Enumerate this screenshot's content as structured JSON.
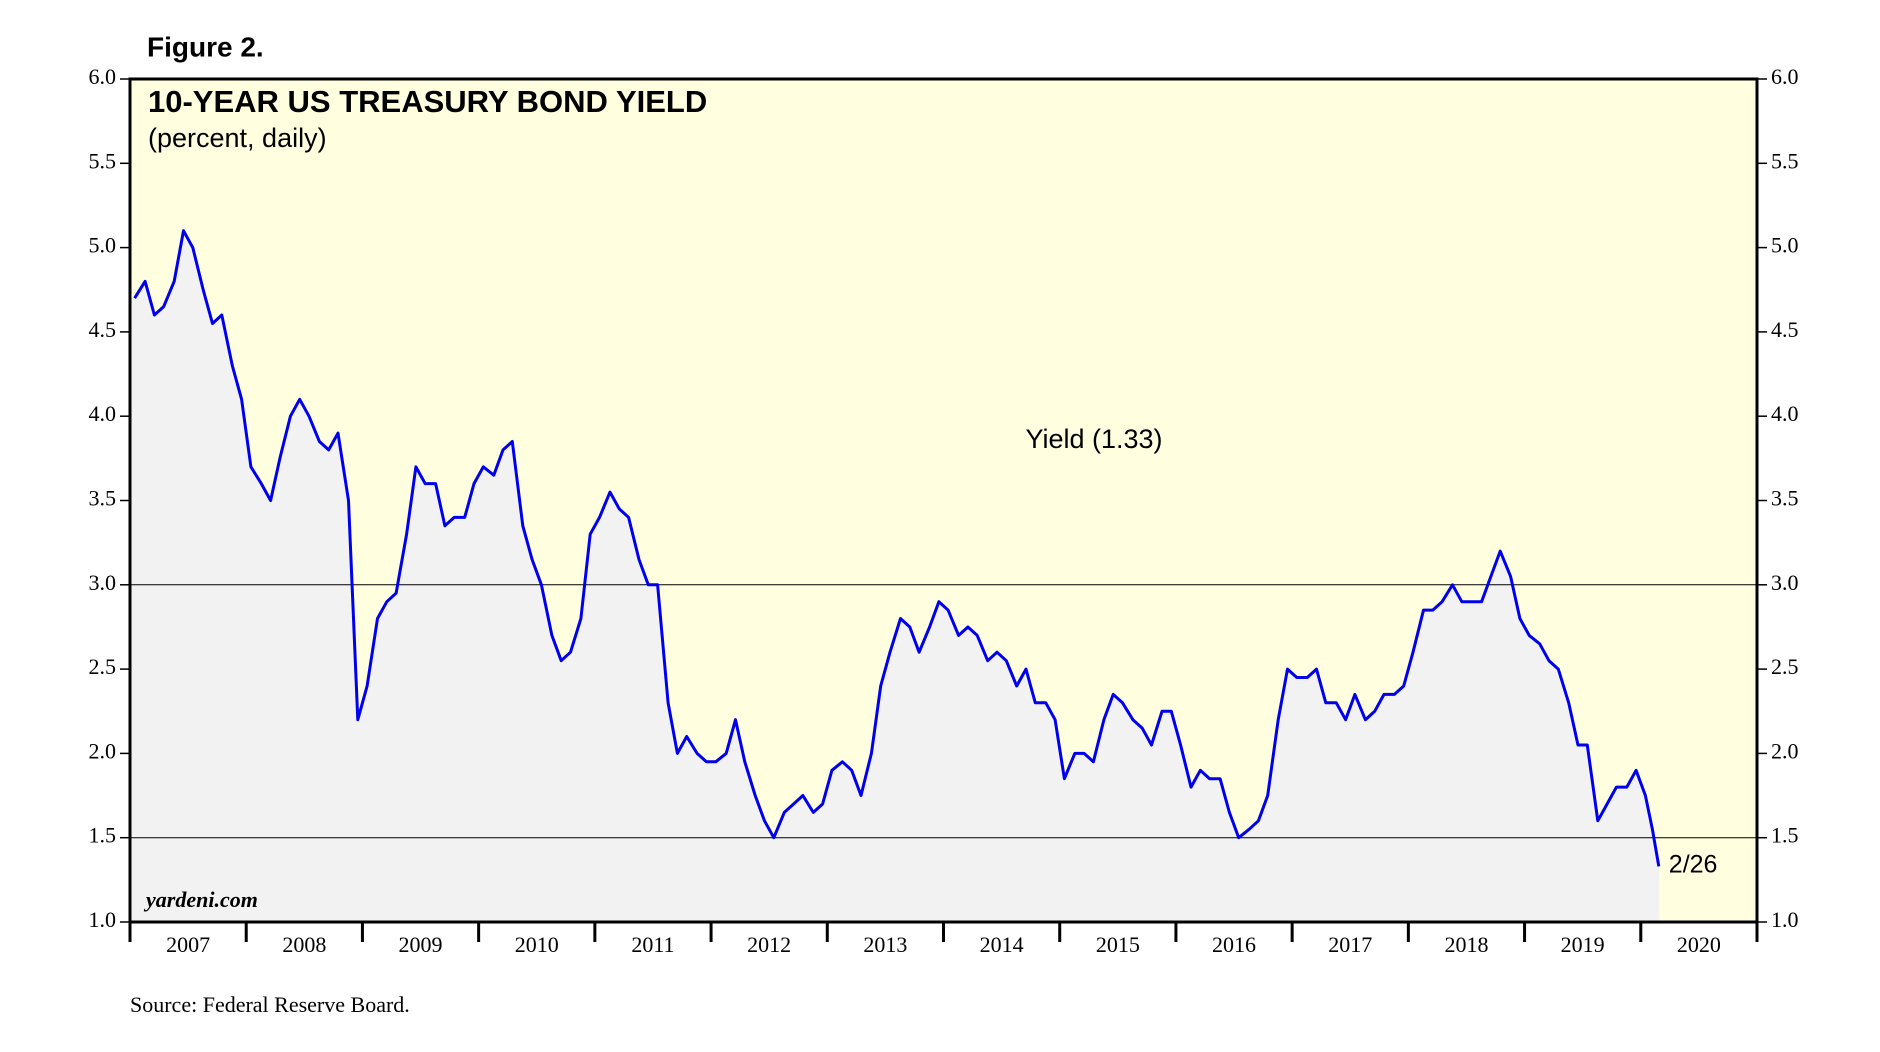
{
  "chart_data": {
    "type": "line",
    "figure_label": "Figure 2.",
    "title": "10-YEAR US TREASURY BOND YIELD",
    "subtitle": "(percent, daily)",
    "annotations": {
      "series_label": "Yield (1.33)",
      "end_label": "2/26",
      "brand": "yardeni.com"
    },
    "source": "Source: Federal Reserve Board.",
    "xlim": [
      2007,
      2021
    ],
    "xticks": [
      2007,
      2008,
      2009,
      2010,
      2011,
      2012,
      2013,
      2014,
      2015,
      2016,
      2017,
      2018,
      2019,
      2020
    ],
    "ylim": [
      1,
      6
    ],
    "yticks": [
      {
        "value": 1,
        "label": "1.0"
      },
      {
        "value": 1.5,
        "label": "1.5"
      },
      {
        "value": 2,
        "label": "2.0"
      },
      {
        "value": 2.5,
        "label": "2.5"
      },
      {
        "value": 3,
        "label": "3.0"
      },
      {
        "value": 3.5,
        "label": "3.5"
      },
      {
        "value": 4,
        "label": "4.0"
      },
      {
        "value": 4.5,
        "label": "4.5"
      },
      {
        "value": 5,
        "label": "5.0"
      },
      {
        "value": 5.5,
        "label": "5.5"
      },
      {
        "value": 6,
        "label": "6.0"
      }
    ],
    "grid_lines": [
      1.5,
      3
    ],
    "background_color": "#ffffe0",
    "area_color": "#f2f2f2",
    "series": [
      {
        "name": "Yield",
        "color": "#0000ee",
        "x": [
          2007.04,
          2007.13,
          2007.21,
          2007.29,
          2007.38,
          2007.46,
          2007.54,
          2007.63,
          2007.71,
          2007.79,
          2007.88,
          2007.96,
          2008.04,
          2008.13,
          2008.21,
          2008.29,
          2008.38,
          2008.46,
          2008.54,
          2008.63,
          2008.71,
          2008.79,
          2008.88,
          2008.96,
          2009.04,
          2009.13,
          2009.21,
          2009.29,
          2009.38,
          2009.46,
          2009.54,
          2009.63,
          2009.71,
          2009.79,
          2009.88,
          2009.96,
          2010.04,
          2010.13,
          2010.21,
          2010.29,
          2010.38,
          2010.46,
          2010.54,
          2010.63,
          2010.71,
          2010.79,
          2010.88,
          2010.96,
          2011.04,
          2011.13,
          2011.21,
          2011.29,
          2011.38,
          2011.46,
          2011.54,
          2011.63,
          2011.71,
          2011.79,
          2011.88,
          2011.96,
          2012.04,
          2012.13,
          2012.21,
          2012.29,
          2012.38,
          2012.46,
          2012.54,
          2012.63,
          2012.71,
          2012.79,
          2012.88,
          2012.96,
          2013.04,
          2013.13,
          2013.21,
          2013.29,
          2013.38,
          2013.46,
          2013.54,
          2013.63,
          2013.71,
          2013.79,
          2013.88,
          2013.96,
          2014.04,
          2014.13,
          2014.21,
          2014.29,
          2014.38,
          2014.46,
          2014.54,
          2014.63,
          2014.71,
          2014.79,
          2014.88,
          2014.96,
          2015.04,
          2015.13,
          2015.21,
          2015.29,
          2015.38,
          2015.46,
          2015.54,
          2015.63,
          2015.71,
          2015.79,
          2015.88,
          2015.96,
          2016.04,
          2016.13,
          2016.21,
          2016.29,
          2016.38,
          2016.46,
          2016.54,
          2016.63,
          2016.71,
          2016.79,
          2016.88,
          2016.96,
          2017.04,
          2017.13,
          2017.21,
          2017.29,
          2017.38,
          2017.46,
          2017.54,
          2017.63,
          2017.71,
          2017.79,
          2017.88,
          2017.96,
          2018.04,
          2018.13,
          2018.21,
          2018.29,
          2018.38,
          2018.46,
          2018.54,
          2018.63,
          2018.71,
          2018.79,
          2018.88,
          2018.96,
          2019.04,
          2019.13,
          2019.21,
          2019.29,
          2019.38,
          2019.46,
          2019.54,
          2019.63,
          2019.71,
          2019.79,
          2019.88,
          2019.96,
          2020.04,
          2020.1,
          2020.155
        ],
        "values": [
          4.7,
          4.8,
          4.6,
          4.65,
          4.8,
          5.1,
          5.0,
          4.75,
          4.55,
          4.6,
          4.3,
          4.1,
          3.7,
          3.6,
          3.5,
          3.75,
          4.0,
          4.1,
          4.0,
          3.85,
          3.8,
          3.9,
          3.5,
          2.2,
          2.4,
          2.8,
          2.9,
          2.95,
          3.3,
          3.7,
          3.6,
          3.6,
          3.35,
          3.4,
          3.4,
          3.6,
          3.7,
          3.65,
          3.8,
          3.85,
          3.35,
          3.15,
          3.0,
          2.7,
          2.55,
          2.6,
          2.8,
          3.3,
          3.4,
          3.55,
          3.45,
          3.4,
          3.15,
          3.0,
          3.0,
          2.3,
          2.0,
          2.1,
          2.0,
          1.95,
          1.95,
          2.0,
          2.2,
          1.95,
          1.75,
          1.6,
          1.5,
          1.65,
          1.7,
          1.75,
          1.65,
          1.7,
          1.9,
          1.95,
          1.9,
          1.75,
          2.0,
          2.4,
          2.6,
          2.8,
          2.75,
          2.6,
          2.75,
          2.9,
          2.85,
          2.7,
          2.75,
          2.7,
          2.55,
          2.6,
          2.55,
          2.4,
          2.5,
          2.3,
          2.3,
          2.2,
          1.85,
          2.0,
          2.0,
          1.95,
          2.2,
          2.35,
          2.3,
          2.2,
          2.15,
          2.05,
          2.25,
          2.25,
          2.05,
          1.8,
          1.9,
          1.85,
          1.85,
          1.65,
          1.5,
          1.55,
          1.6,
          1.75,
          2.2,
          2.5,
          2.45,
          2.45,
          2.5,
          2.3,
          2.3,
          2.2,
          2.35,
          2.2,
          2.25,
          2.35,
          2.35,
          2.4,
          2.6,
          2.85,
          2.85,
          2.9,
          3.0,
          2.9,
          2.9,
          2.9,
          3.05,
          3.2,
          3.05,
          2.8,
          2.7,
          2.65,
          2.55,
          2.5,
          2.3,
          2.05,
          2.05,
          1.6,
          1.7,
          1.8,
          1.8,
          1.9,
          1.75,
          1.55,
          1.33
        ]
      }
    ]
  }
}
